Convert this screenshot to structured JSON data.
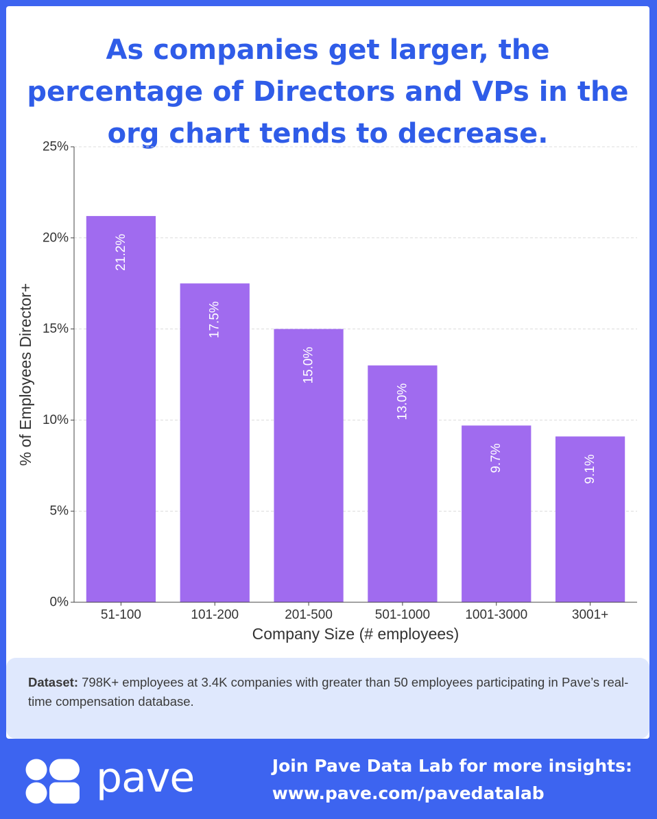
{
  "title_lines": [
    "As companies get larger, the",
    "percentage of Directors and VPs in the",
    "org chart tends to decrease."
  ],
  "chart_data": {
    "type": "bar",
    "title": "As companies get larger, the percentage of Directors and VPs in the org chart tends to decrease.",
    "categories": [
      "51-100",
      "101-200",
      "201-500",
      "501-1000",
      "1001-3000",
      "3001+"
    ],
    "values": [
      21.2,
      17.5,
      15.0,
      13.0,
      9.7,
      9.1
    ],
    "value_labels": [
      "21.2%",
      "17.5%",
      "15.0%",
      "13.0%",
      "9.7%",
      "9.1%"
    ],
    "xlabel": "Company Size (# employees)",
    "ylabel": "% of Employees Director+",
    "ylim": [
      0,
      25
    ],
    "yticks": [
      0,
      5,
      10,
      15,
      20,
      25
    ],
    "ytick_labels": [
      "0%",
      "5%",
      "10%",
      "15%",
      "20%",
      "25%"
    ],
    "grid": true,
    "bar_color": "#a06bef"
  },
  "dataset": {
    "label": "Dataset:",
    "text": " 798K+ employees at 3.4K companies with greater than 50 employees participating in Pave’s real-time compensation database."
  },
  "footer": {
    "brand": "pave",
    "cta_line1": "Join Pave Data Lab for more insights:",
    "cta_line2": "www.pave.com/pavedatalab"
  },
  "colors": {
    "background": "#3d64f0",
    "title": "#2f5ce8",
    "bar": "#a06bef",
    "dataset_box": "#dfe8fd"
  }
}
